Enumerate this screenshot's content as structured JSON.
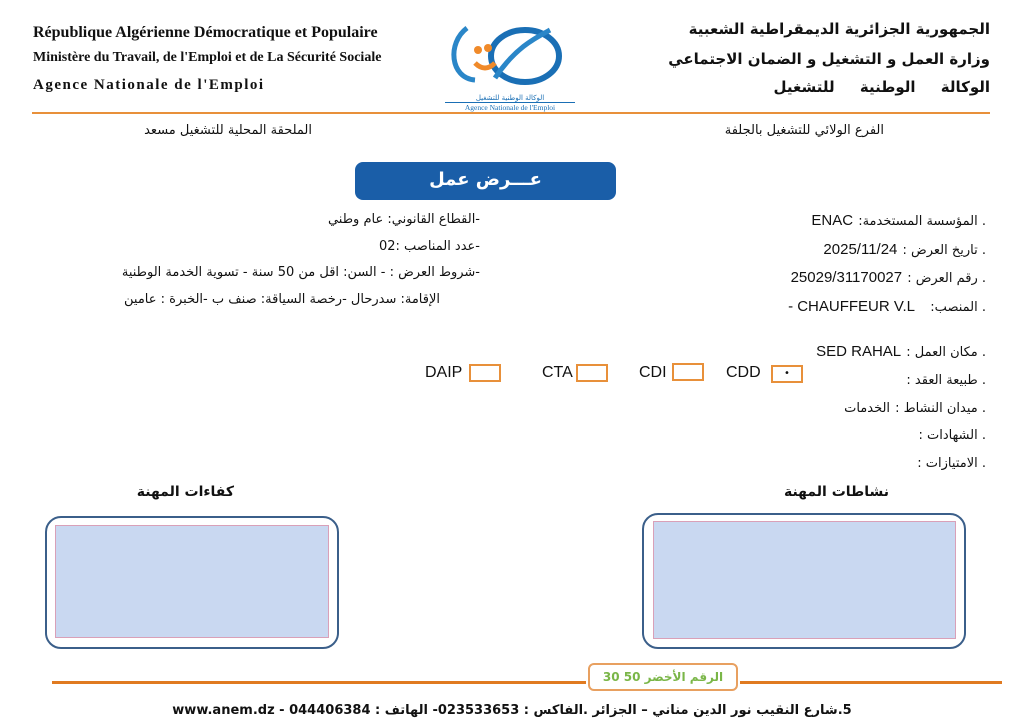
{
  "header": {
    "fr": [
      "République Algérienne Démocratique et Populaire",
      "Ministère du Travail, de l'Emploi et de La Sécurité Sociale",
      "Agence  Nationale  de  l'Emploi"
    ],
    "ar": [
      "الجمهورية الجزائرية الديمقراطية الشعبية",
      "وزارة العمل و التشغيل و الضمان الاجتماعي",
      "الوكالة الوطنية للتشغيل"
    ],
    "logo": {
      "ar": "الوكالة الوطنية للتشغيل",
      "fr": "Agence Nationale de l'Emploi"
    },
    "branch_right": "الفرع الولائي للتشغيل بالجلفة",
    "branch_left": "الملحقة المحلية للتشغيل مسعد"
  },
  "title": "عـــرض عمل",
  "fields_right": [
    {
      "label": ". المؤسسة المستخدمة:",
      "value": "ENAC"
    },
    {
      "label": ". تاريخ العرض :",
      "value": "2025/11/24"
    },
    {
      "label": ". رقم العرض :",
      "value": "25029/31170027"
    },
    {
      "label": ". المنصب:",
      "value": "- CHAUFFEUR V.L"
    }
  ],
  "fields_left": [
    "-القطاع القانوني: عام وطني",
    "-عدد المناصب :02",
    "-شروط العرض  : - السن: اقل من 50 سنة    - تسوية الخدمة الوطنية",
    "الإقامة: سدرحال   -رخصة السياقة: صنف ب   -الخبرة : عامين"
  ],
  "fields_lower": [
    {
      "label": ". مكان العمل :",
      "value": "SED RAHAL"
    },
    {
      "label": ". طبيعة العقد :",
      "value": ""
    },
    {
      "label": ". ميدان النشاط :",
      "value": "الخدمات"
    },
    {
      "label": ". الشهادات :",
      "value": ""
    },
    {
      "label": ". الامتيازات :",
      "value": ""
    }
  ],
  "contract_types": [
    {
      "label": "DAIP",
      "checked": false
    },
    {
      "label": "CTA",
      "checked": false
    },
    {
      "label": "CDI",
      "checked": false
    },
    {
      "label": "CDD",
      "checked": true,
      "mark": "•"
    }
  ],
  "sections": {
    "activities": "نشاطات المهنة",
    "skills": "كفاءات المهنة"
  },
  "footer": {
    "green_number": "الرقم الأخضر 50 30",
    "address": "5.شارع النقيب نور الدين مناني – الجزائر .الفاكس : 023533653- الهاتف : 044406384   -   www.anem.dz"
  },
  "colors": {
    "orange": "#e8903a",
    "blue": "#1a5ea8",
    "green": "#7ab648",
    "box_fill": "#c9d8f1"
  }
}
